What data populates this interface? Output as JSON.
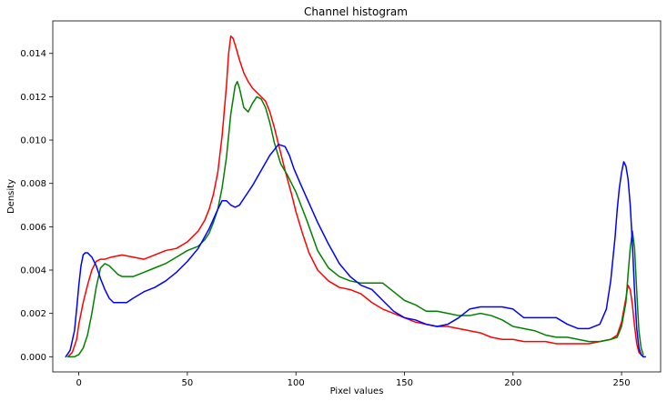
{
  "chart_data": {
    "type": "line",
    "title": "Channel histogram",
    "xlabel": "Pixel values",
    "ylabel": "Density",
    "xlim": [
      -12,
      268
    ],
    "ylim": [
      -0.0007,
      0.0155
    ],
    "grid": false,
    "legend": "none",
    "x_ticks": [
      0,
      50,
      100,
      150,
      200,
      250
    ],
    "x_tick_labels": [
      "0",
      "50",
      "100",
      "150",
      "200",
      "250"
    ],
    "y_ticks": [
      0.0,
      0.002,
      0.004,
      0.006,
      0.008,
      0.01,
      0.012,
      0.014
    ],
    "y_tick_labels": [
      "0.000",
      "0.002",
      "0.004",
      "0.006",
      "0.008",
      "0.010",
      "0.012",
      "0.014"
    ],
    "series": [
      {
        "color": "#ff0000",
        "x": [
          -5,
          -3,
          -1,
          0,
          2,
          4,
          6,
          8,
          10,
          12,
          15,
          20,
          25,
          30,
          35,
          40,
          45,
          50,
          55,
          58,
          60,
          62,
          64,
          66,
          68,
          69,
          70,
          71,
          72,
          74,
          76,
          78,
          80,
          82,
          84,
          86,
          88,
          90,
          92,
          95,
          98,
          100,
          103,
          106,
          110,
          115,
          120,
          125,
          130,
          135,
          140,
          145,
          150,
          155,
          160,
          165,
          170,
          175,
          180,
          185,
          190,
          195,
          200,
          205,
          210,
          215,
          220,
          225,
          230,
          235,
          240,
          245,
          248,
          250,
          252,
          253,
          254,
          255,
          256,
          257,
          258,
          259,
          260
        ],
        "y": [
          0.0,
          0.0002,
          0.0008,
          0.0015,
          0.0025,
          0.0033,
          0.004,
          0.0044,
          0.0045,
          0.0045,
          0.0046,
          0.0047,
          0.0046,
          0.0045,
          0.0047,
          0.0049,
          0.005,
          0.0053,
          0.0058,
          0.0063,
          0.0068,
          0.0075,
          0.0085,
          0.0102,
          0.0125,
          0.014,
          0.0148,
          0.0147,
          0.0144,
          0.0137,
          0.0131,
          0.0127,
          0.0124,
          0.0122,
          0.012,
          0.0118,
          0.0113,
          0.0106,
          0.0098,
          0.0086,
          0.0075,
          0.0067,
          0.0057,
          0.0048,
          0.004,
          0.0035,
          0.0032,
          0.0031,
          0.0029,
          0.0025,
          0.0022,
          0.002,
          0.0018,
          0.0016,
          0.0015,
          0.0014,
          0.0014,
          0.0013,
          0.0012,
          0.0011,
          0.0009,
          0.0008,
          0.0008,
          0.0007,
          0.0007,
          0.0007,
          0.0006,
          0.0006,
          0.0006,
          0.0006,
          0.0007,
          0.0008,
          0.001,
          0.0016,
          0.0027,
          0.0033,
          0.0031,
          0.0024,
          0.0014,
          0.0006,
          0.0002,
          0.0001,
          0.0
        ]
      },
      {
        "color": "#008000",
        "x": [
          -5,
          -2,
          0,
          2,
          4,
          6,
          8,
          10,
          12,
          14,
          16,
          18,
          20,
          25,
          30,
          35,
          40,
          45,
          50,
          55,
          58,
          60,
          62,
          64,
          66,
          68,
          70,
          72,
          73,
          74,
          76,
          78,
          80,
          82,
          84,
          86,
          88,
          90,
          93,
          96,
          100,
          105,
          110,
          115,
          120,
          125,
          130,
          135,
          140,
          145,
          150,
          155,
          160,
          165,
          170,
          175,
          180,
          185,
          190,
          195,
          200,
          205,
          210,
          215,
          220,
          225,
          230,
          235,
          240,
          245,
          248,
          250,
          252,
          253,
          254,
          255,
          256,
          257,
          258,
          259,
          260
        ],
        "y": [
          0.0,
          0.0,
          0.0001,
          0.0004,
          0.001,
          0.002,
          0.0032,
          0.0041,
          0.0043,
          0.0042,
          0.004,
          0.0038,
          0.0037,
          0.0037,
          0.0039,
          0.0041,
          0.0043,
          0.0046,
          0.0049,
          0.0051,
          0.0054,
          0.0057,
          0.0062,
          0.0068,
          0.0078,
          0.0092,
          0.0112,
          0.0125,
          0.0127,
          0.0124,
          0.0115,
          0.0113,
          0.0117,
          0.012,
          0.0119,
          0.0115,
          0.0108,
          0.0099,
          0.0089,
          0.0084,
          0.0076,
          0.0063,
          0.0049,
          0.0041,
          0.0037,
          0.0035,
          0.0034,
          0.0034,
          0.0034,
          0.003,
          0.0026,
          0.0024,
          0.0021,
          0.0021,
          0.002,
          0.0019,
          0.0019,
          0.002,
          0.0019,
          0.0017,
          0.0014,
          0.0013,
          0.0012,
          0.001,
          0.0009,
          0.0009,
          0.0008,
          0.0007,
          0.0007,
          0.0008,
          0.0009,
          0.0014,
          0.0025,
          0.0038,
          0.005,
          0.0058,
          0.005,
          0.003,
          0.0012,
          0.0004,
          0.0001
        ]
      },
      {
        "color": "#0000ff",
        "x": [
          -6,
          -4,
          -2,
          -1,
          0,
          1,
          2,
          3,
          4,
          6,
          8,
          10,
          12,
          14,
          16,
          18,
          20,
          22,
          25,
          30,
          35,
          40,
          45,
          50,
          55,
          60,
          64,
          66,
          68,
          70,
          72,
          74,
          76,
          78,
          80,
          84,
          88,
          92,
          95,
          97,
          99,
          102,
          106,
          110,
          115,
          120,
          125,
          130,
          135,
          140,
          145,
          150,
          155,
          160,
          165,
          170,
          175,
          180,
          185,
          190,
          195,
          200,
          205,
          210,
          215,
          220,
          225,
          230,
          235,
          240,
          243,
          245,
          247,
          248,
          249,
          250,
          251,
          252,
          253,
          254,
          255,
          256,
          257,
          258,
          259,
          260,
          261
        ],
        "y": [
          0.0,
          0.0003,
          0.0012,
          0.0022,
          0.0033,
          0.0042,
          0.0047,
          0.0048,
          0.0048,
          0.0046,
          0.0042,
          0.0036,
          0.0031,
          0.0027,
          0.0025,
          0.0025,
          0.0025,
          0.0025,
          0.0027,
          0.003,
          0.0032,
          0.0035,
          0.0039,
          0.0044,
          0.005,
          0.0059,
          0.0068,
          0.0072,
          0.0072,
          0.007,
          0.0069,
          0.007,
          0.0073,
          0.0076,
          0.0079,
          0.0086,
          0.0093,
          0.0098,
          0.0097,
          0.0093,
          0.0087,
          0.008,
          0.0071,
          0.0062,
          0.0052,
          0.0043,
          0.0037,
          0.0033,
          0.0031,
          0.0026,
          0.0021,
          0.0018,
          0.0017,
          0.0015,
          0.0014,
          0.0015,
          0.0018,
          0.0022,
          0.0023,
          0.0023,
          0.0023,
          0.0022,
          0.0018,
          0.0018,
          0.0018,
          0.0018,
          0.0015,
          0.0013,
          0.0013,
          0.0015,
          0.0022,
          0.0035,
          0.0055,
          0.0068,
          0.0078,
          0.0085,
          0.009,
          0.0088,
          0.0082,
          0.007,
          0.0052,
          0.003,
          0.0013,
          0.0004,
          0.0001,
          0.0,
          0.0
        ]
      }
    ]
  }
}
